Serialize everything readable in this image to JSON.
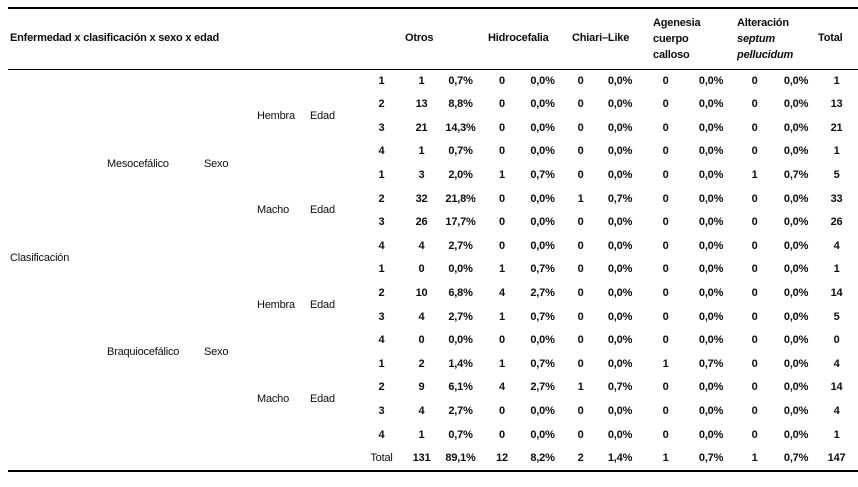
{
  "header": {
    "title": "Enfermedad x clasificación x sexo x edad",
    "columns": [
      {
        "name": "otros",
        "label": "Otros"
      },
      {
        "name": "hidrocefalia",
        "label": "Hidrocefalia"
      },
      {
        "name": "chiari-like",
        "label": "Chiari–Like"
      },
      {
        "name": "agenesia-cuerpo-calloso",
        "lines": [
          "Agenesia",
          "cuerpo",
          "calloso"
        ]
      },
      {
        "name": "alteracion-septum-pellucidum",
        "lines": [
          "Alteración",
          "septum",
          "pellucidum"
        ],
        "italic_lines": [
          1,
          2
        ]
      },
      {
        "name": "total",
        "label": "Total"
      }
    ]
  },
  "body": {
    "clasificacion_label": "Clasificación",
    "sexo_label": "Sexo",
    "edad_label": "Edad",
    "total_label": "Total",
    "groups": [
      {
        "name": "Mesocefálico",
        "sexes": [
          {
            "name": "Hembra",
            "rows": [
              {
                "edad": "1",
                "cells": [
                  "1",
                  "0,7%",
                  "0",
                  "0,0%",
                  "0",
                  "0,0%",
                  "0",
                  "0,0%",
                  "0",
                  "0,0%",
                  "1"
                ]
              },
              {
                "edad": "2",
                "cells": [
                  "13",
                  "8,8%",
                  "0",
                  "0,0%",
                  "0",
                  "0,0%",
                  "0",
                  "0,0%",
                  "0",
                  "0,0%",
                  "13"
                ]
              },
              {
                "edad": "3",
                "cells": [
                  "21",
                  "14,3%",
                  "0",
                  "0,0%",
                  "0",
                  "0,0%",
                  "0",
                  "0,0%",
                  "0",
                  "0,0%",
                  "21"
                ]
              },
              {
                "edad": "4",
                "cells": [
                  "1",
                  "0,7%",
                  "0",
                  "0,0%",
                  "0",
                  "0,0%",
                  "0",
                  "0,0%",
                  "0",
                  "0,0%",
                  "1"
                ]
              }
            ]
          },
          {
            "name": "Macho",
            "rows": [
              {
                "edad": "1",
                "cells": [
                  "3",
                  "2,0%",
                  "1",
                  "0,7%",
                  "0",
                  "0,0%",
                  "0",
                  "0,0%",
                  "1",
                  "0,7%",
                  "5"
                ]
              },
              {
                "edad": "2",
                "cells": [
                  "32",
                  "21,8%",
                  "0",
                  "0,0%",
                  "1",
                  "0,7%",
                  "0",
                  "0,0%",
                  "0",
                  "0,0%",
                  "33"
                ]
              },
              {
                "edad": "3",
                "cells": [
                  "26",
                  "17,7%",
                  "0",
                  "0,0%",
                  "0",
                  "0,0%",
                  "0",
                  "0,0%",
                  "0",
                  "0,0%",
                  "26"
                ]
              },
              {
                "edad": "4",
                "cells": [
                  "4",
                  "2,7%",
                  "0",
                  "0,0%",
                  "0",
                  "0,0%",
                  "0",
                  "0,0%",
                  "0",
                  "0,0%",
                  "4"
                ]
              }
            ]
          }
        ]
      },
      {
        "name": "Braquiocefálico",
        "sexes": [
          {
            "name": "Hembra",
            "rows": [
              {
                "edad": "1",
                "cells": [
                  "0",
                  "0,0%",
                  "1",
                  "0,7%",
                  "0",
                  "0,0%",
                  "0",
                  "0,0%",
                  "0",
                  "0,0%",
                  "1"
                ]
              },
              {
                "edad": "2",
                "cells": [
                  "10",
                  "6,8%",
                  "4",
                  "2,7%",
                  "0",
                  "0,0%",
                  "0",
                  "0,0%",
                  "0",
                  "0,0%",
                  "14"
                ]
              },
              {
                "edad": "3",
                "cells": [
                  "4",
                  "2,7%",
                  "1",
                  "0,7%",
                  "0",
                  "0,0%",
                  "0",
                  "0,0%",
                  "0",
                  "0,0%",
                  "5"
                ]
              },
              {
                "edad": "4",
                "cells": [
                  "0",
                  "0,0%",
                  "0",
                  "0,0%",
                  "0",
                  "0,0%",
                  "0",
                  "0,0%",
                  "0",
                  "0,0%",
                  "0"
                ]
              }
            ]
          },
          {
            "name": "Macho",
            "rows": [
              {
                "edad": "1",
                "cells": [
                  "2",
                  "1,4%",
                  "1",
                  "0,7%",
                  "0",
                  "0,0%",
                  "1",
                  "0,7%",
                  "0",
                  "0,0%",
                  "4"
                ]
              },
              {
                "edad": "2",
                "cells": [
                  "9",
                  "6,1%",
                  "4",
                  "2,7%",
                  "1",
                  "0,7%",
                  "0",
                  "0,0%",
                  "0",
                  "0,0%",
                  "14"
                ]
              },
              {
                "edad": "3",
                "cells": [
                  "4",
                  "2,7%",
                  "0",
                  "0,0%",
                  "0",
                  "0,0%",
                  "0",
                  "0,0%",
                  "0",
                  "0,0%",
                  "4"
                ]
              },
              {
                "edad": "4",
                "cells": [
                  "1",
                  "0,7%",
                  "0",
                  "0,0%",
                  "0",
                  "0,0%",
                  "0",
                  "0,0%",
                  "0",
                  "0,0%",
                  "1"
                ]
              }
            ]
          }
        ]
      }
    ],
    "total_row": [
      "131",
      "89,1%",
      "12",
      "8,2%",
      "2",
      "1,4%",
      "1",
      "0,7%",
      "1",
      "0,7%",
      "147"
    ]
  }
}
